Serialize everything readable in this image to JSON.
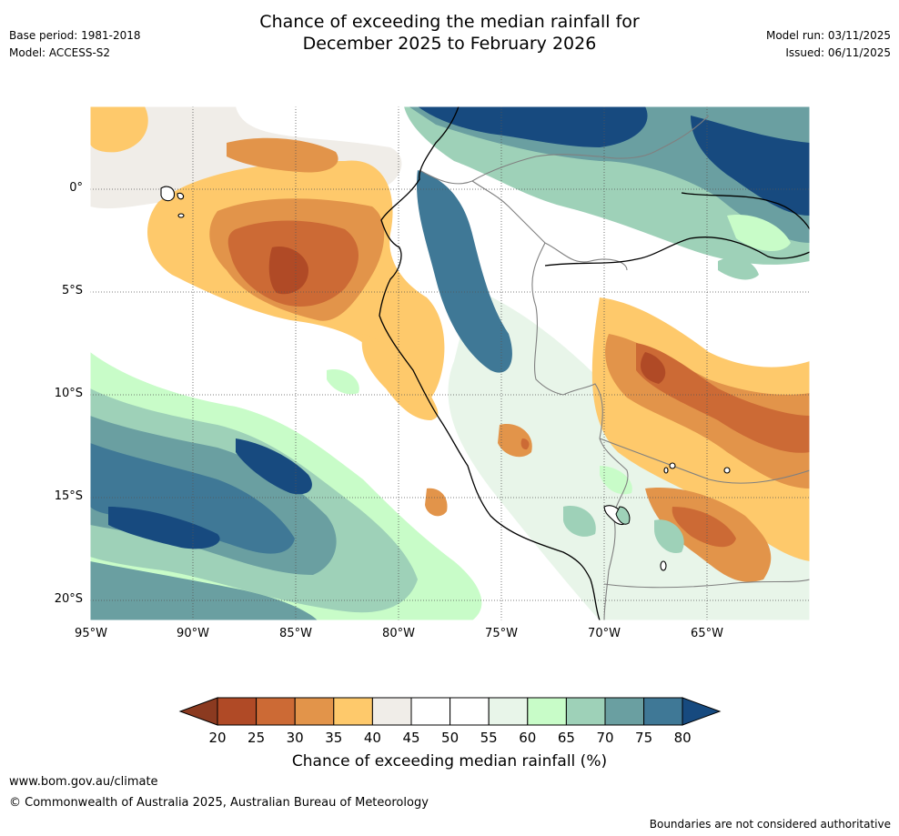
{
  "header": {
    "title_line1": "Chance of exceeding the median rainfall for",
    "title_line2": "December 2025 to February 2026",
    "base_period": "Base period: 1981-2018",
    "model": "Model: ACCESS-S2",
    "model_run": "Model run: 03/11/2025",
    "issued": "Issued: 06/11/2025"
  },
  "map": {
    "lat_labels": [
      "0°",
      "5°S",
      "10°S",
      "15°S",
      "20°S"
    ],
    "lon_labels": [
      "95°W",
      "90°W",
      "85°W",
      "80°W",
      "75°W",
      "70°W",
      "65°W"
    ]
  },
  "colorbar": {
    "ticks": [
      "20",
      "25",
      "30",
      "35",
      "40",
      "45",
      "50",
      "55",
      "60",
      "65",
      "70",
      "75",
      "80"
    ],
    "colors": [
      "#8b3a20",
      "#b04a26",
      "#cc6a35",
      "#e2944a",
      "#fec96b",
      "#f0ede8",
      "#ffffff",
      "#ffffff",
      "#e8f5e9",
      "#c8fcc8",
      "#9ed1b8",
      "#6a9fa1",
      "#3f7896",
      "#174a7f"
    ],
    "label": "Chance of exceeding median rainfall (%)"
  },
  "footer": {
    "site": "www.bom.gov.au/climate",
    "copyright": "© Commonwealth of Australia 2025, Australian Bureau of Meteorology",
    "disclaimer": "Boundaries are not considered authoritative"
  }
}
